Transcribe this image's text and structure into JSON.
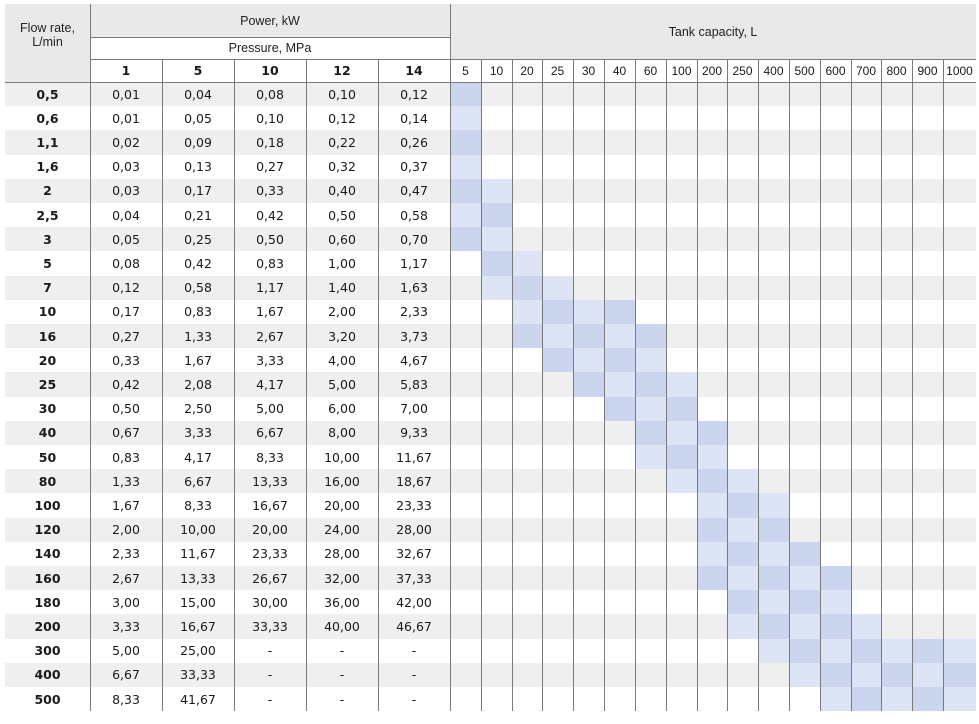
{
  "header": {
    "flow_rate": "Flow rate,\nL/min",
    "flow_rate_line1": "Flow rate,",
    "flow_rate_line2": "L/min",
    "power": "Power, kW",
    "pressure": "Pressure, MPa",
    "tank": "Tank capacity, L",
    "pressures": [
      "1",
      "5",
      "10",
      "12",
      "14"
    ],
    "tanks": [
      "5",
      "10",
      "20",
      "25",
      "30",
      "40",
      "60",
      "100",
      "200",
      "250",
      "400",
      "500",
      "600",
      "700",
      "800",
      "900",
      "1000"
    ]
  },
  "rows": [
    {
      "flow": "0,5",
      "p": [
        "0,01",
        "0,04",
        "0,08",
        "0,10",
        "0,12"
      ],
      "tank": [
        0
      ]
    },
    {
      "flow": "0,6",
      "p": [
        "0,01",
        "0,05",
        "0,10",
        "0,12",
        "0,14"
      ],
      "tank": [
        0
      ]
    },
    {
      "flow": "1,1",
      "p": [
        "0,02",
        "0,09",
        "0,18",
        "0,22",
        "0,26"
      ],
      "tank": [
        0
      ]
    },
    {
      "flow": "1,6",
      "p": [
        "0,03",
        "0,13",
        "0,27",
        "0,32",
        "0,37"
      ],
      "tank": [
        0
      ]
    },
    {
      "flow": "2",
      "p": [
        "0,03",
        "0,17",
        "0,33",
        "0,40",
        "0,47"
      ],
      "tank": [
        0,
        1
      ]
    },
    {
      "flow": "2,5",
      "p": [
        "0,04",
        "0,21",
        "0,42",
        "0,50",
        "0,58"
      ],
      "tank": [
        0,
        1
      ]
    },
    {
      "flow": "3",
      "p": [
        "0,05",
        "0,25",
        "0,50",
        "0,60",
        "0,70"
      ],
      "tank": [
        0,
        1
      ]
    },
    {
      "flow": "5",
      "p": [
        "0,08",
        "0,42",
        "0,83",
        "1,00",
        "1,17"
      ],
      "tank": [
        1,
        2
      ]
    },
    {
      "flow": "7",
      "p": [
        "0,12",
        "0,58",
        "1,17",
        "1,40",
        "1,63"
      ],
      "tank": [
        1,
        2,
        3
      ]
    },
    {
      "flow": "10",
      "p": [
        "0,17",
        "0,83",
        "1,67",
        "2,00",
        "2,33"
      ],
      "tank": [
        2,
        3,
        4,
        5
      ]
    },
    {
      "flow": "16",
      "p": [
        "0,27",
        "1,33",
        "2,67",
        "3,20",
        "3,73"
      ],
      "tank": [
        2,
        3,
        4,
        5,
        6
      ]
    },
    {
      "flow": "20",
      "p": [
        "0,33",
        "1,67",
        "3,33",
        "4,00",
        "4,67"
      ],
      "tank": [
        3,
        4,
        5,
        6
      ]
    },
    {
      "flow": "25",
      "p": [
        "0,42",
        "2,08",
        "4,17",
        "5,00",
        "5,83"
      ],
      "tank": [
        4,
        5,
        6,
        7
      ]
    },
    {
      "flow": "30",
      "p": [
        "0,50",
        "2,50",
        "5,00",
        "6,00",
        "7,00"
      ],
      "tank": [
        5,
        6,
        7
      ]
    },
    {
      "flow": "40",
      "p": [
        "0,67",
        "3,33",
        "6,67",
        "8,00",
        "9,33"
      ],
      "tank": [
        6,
        7,
        8
      ]
    },
    {
      "flow": "50",
      "p": [
        "0,83",
        "4,17",
        "8,33",
        "10,00",
        "11,67"
      ],
      "tank": [
        6,
        7,
        8
      ]
    },
    {
      "flow": "80",
      "p": [
        "1,33",
        "6,67",
        "13,33",
        "16,00",
        "18,67"
      ],
      "tank": [
        7,
        8,
        9
      ]
    },
    {
      "flow": "100",
      "p": [
        "1,67",
        "8,33",
        "16,67",
        "20,00",
        "23,33"
      ],
      "tank": [
        8,
        9,
        10
      ]
    },
    {
      "flow": "120",
      "p": [
        "2,00",
        "10,00",
        "20,00",
        "24,00",
        "28,00"
      ],
      "tank": [
        8,
        9,
        10
      ]
    },
    {
      "flow": "140",
      "p": [
        "2,33",
        "11,67",
        "23,33",
        "28,00",
        "32,67"
      ],
      "tank": [
        8,
        9,
        10,
        11
      ]
    },
    {
      "flow": "160",
      "p": [
        "2,67",
        "13,33",
        "26,67",
        "32,00",
        "37,33"
      ],
      "tank": [
        8,
        9,
        10,
        11,
        12
      ]
    },
    {
      "flow": "180",
      "p": [
        "3,00",
        "15,00",
        "30,00",
        "36,00",
        "42,00"
      ],
      "tank": [
        9,
        10,
        11,
        12
      ]
    },
    {
      "flow": "200",
      "p": [
        "3,33",
        "16,67",
        "33,33",
        "40,00",
        "46,67"
      ],
      "tank": [
        9,
        10,
        11,
        12,
        13
      ]
    },
    {
      "flow": "300",
      "p": [
        "5,00",
        "25,00",
        "-",
        "-",
        "-"
      ],
      "tank": [
        10,
        11,
        12,
        13,
        14,
        15,
        16
      ]
    },
    {
      "flow": "400",
      "p": [
        "6,67",
        "33,33",
        "-",
        "-",
        "-"
      ],
      "tank": [
        11,
        12,
        13,
        14,
        15,
        16
      ]
    },
    {
      "flow": "500",
      "p": [
        "8,33",
        "41,67",
        "-",
        "-",
        "-"
      ],
      "tank": [
        12,
        13,
        14,
        15,
        16
      ]
    }
  ],
  "colors": {
    "header_bg": "#e9e9e9",
    "row_even_bg": "#ffffff",
    "row_odd_bg": "#efefef",
    "tank_light": "#dce4f5",
    "tank_mid": "#cbd6ee",
    "grid_line": "#7a7a7a"
  }
}
